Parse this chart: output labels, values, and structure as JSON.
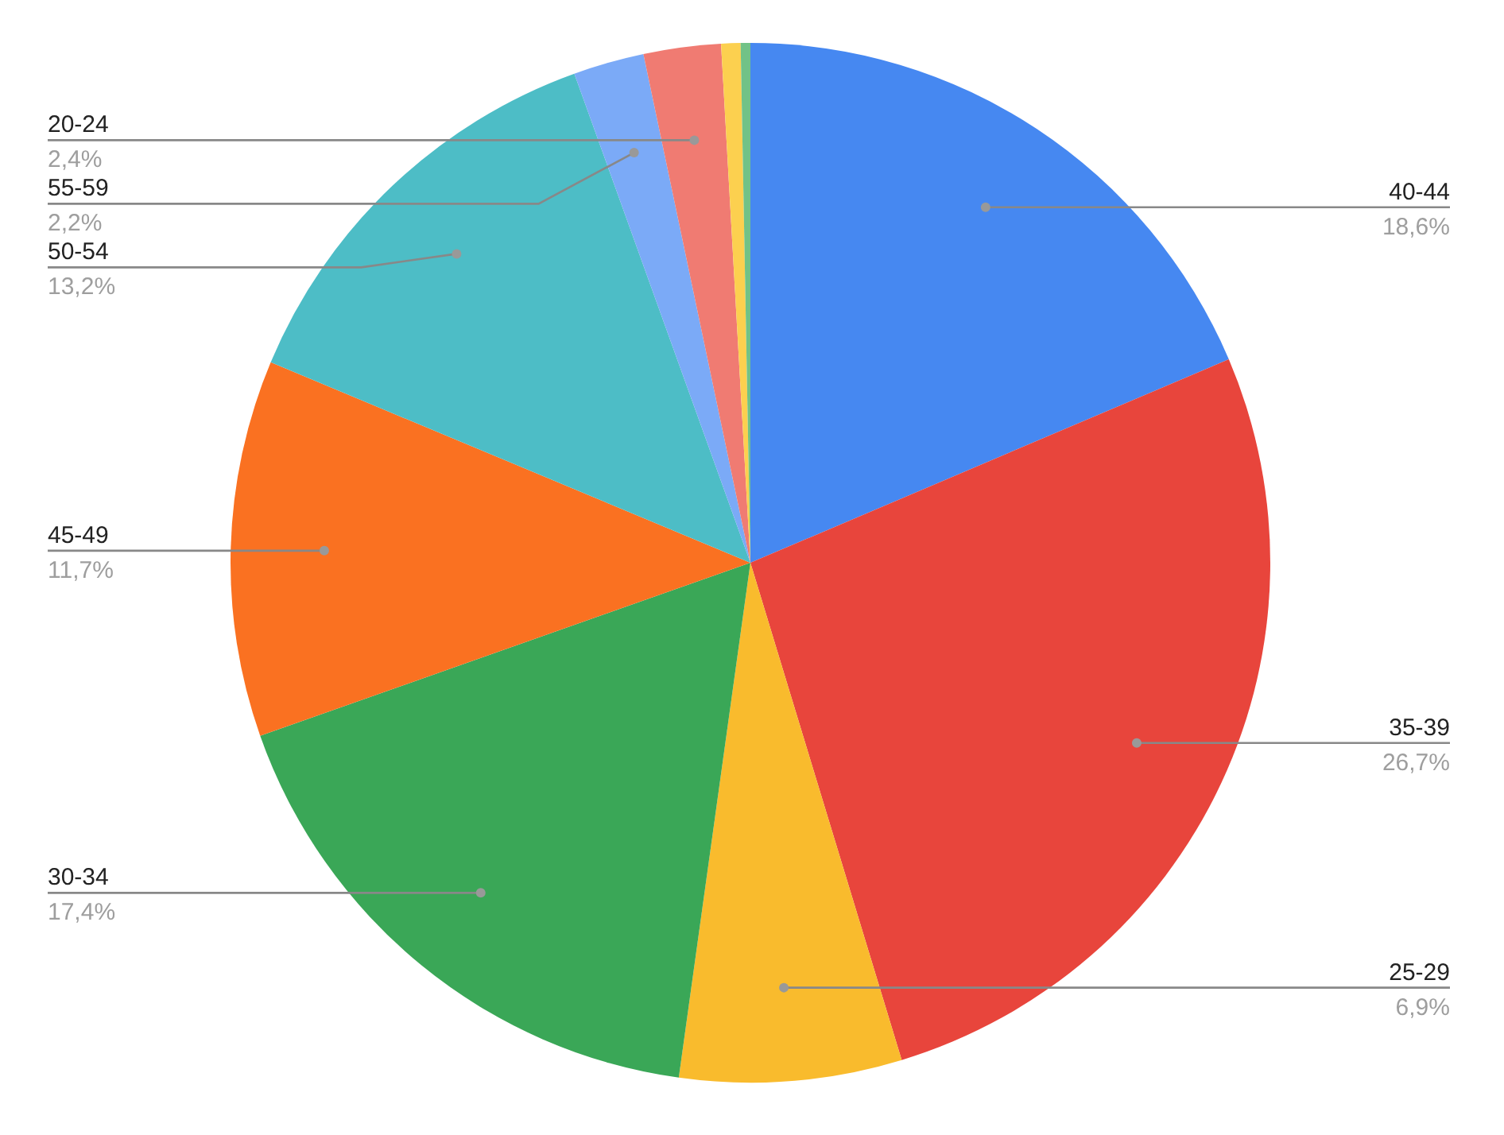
{
  "chart_data": {
    "type": "pie",
    "categories": [
      "40-44",
      "35-39",
      "25-29",
      "30-34",
      "45-49",
      "50-54",
      "55-59",
      "20-24",
      null,
      null
    ],
    "values": [
      18.6,
      26.7,
      6.9,
      17.4,
      11.7,
      13.2,
      2.2,
      2.4,
      0.6,
      0.3
    ],
    "value_labels": [
      "18,6%",
      "26,7%",
      "6,9%",
      "17,4%",
      "11,7%",
      "13,2%",
      "2,2%",
      "2,4%",
      null,
      null
    ],
    "colors": [
      "#4688f1",
      "#e8453c",
      "#f9bb2d",
      "#3aa757",
      "#fa7121",
      "#4dbdc6",
      "#7baaf7",
      "#f07b72",
      "#fcd04f",
      "#71c287"
    ],
    "legend": false
  }
}
